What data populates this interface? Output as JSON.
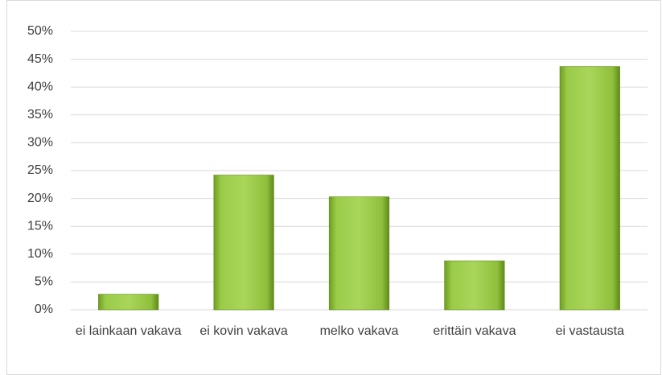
{
  "chart_data": {
    "type": "bar",
    "categories": [
      "ei lainkaan vakava",
      "ei kovin vakava",
      "melko vakava",
      "erittäin vakava",
      "ei vastausta"
    ],
    "values": [
      2.8,
      24.2,
      20.3,
      8.8,
      43.7
    ],
    "color": "#8dc13a",
    "ylim": [
      0,
      50
    ],
    "yticks": [
      {
        "value": 0,
        "label": "0%"
      },
      {
        "value": 5,
        "label": "5%"
      },
      {
        "value": 10,
        "label": "10%"
      },
      {
        "value": 15,
        "label": "15%"
      },
      {
        "value": 20,
        "label": "20%"
      },
      {
        "value": 25,
        "label": "25%"
      },
      {
        "value": 30,
        "label": "30%"
      },
      {
        "value": 35,
        "label": "35%"
      },
      {
        "value": 40,
        "label": "40%"
      },
      {
        "value": 45,
        "label": "45%"
      },
      {
        "value": 50,
        "label": "50%"
      }
    ],
    "grid": true
  }
}
